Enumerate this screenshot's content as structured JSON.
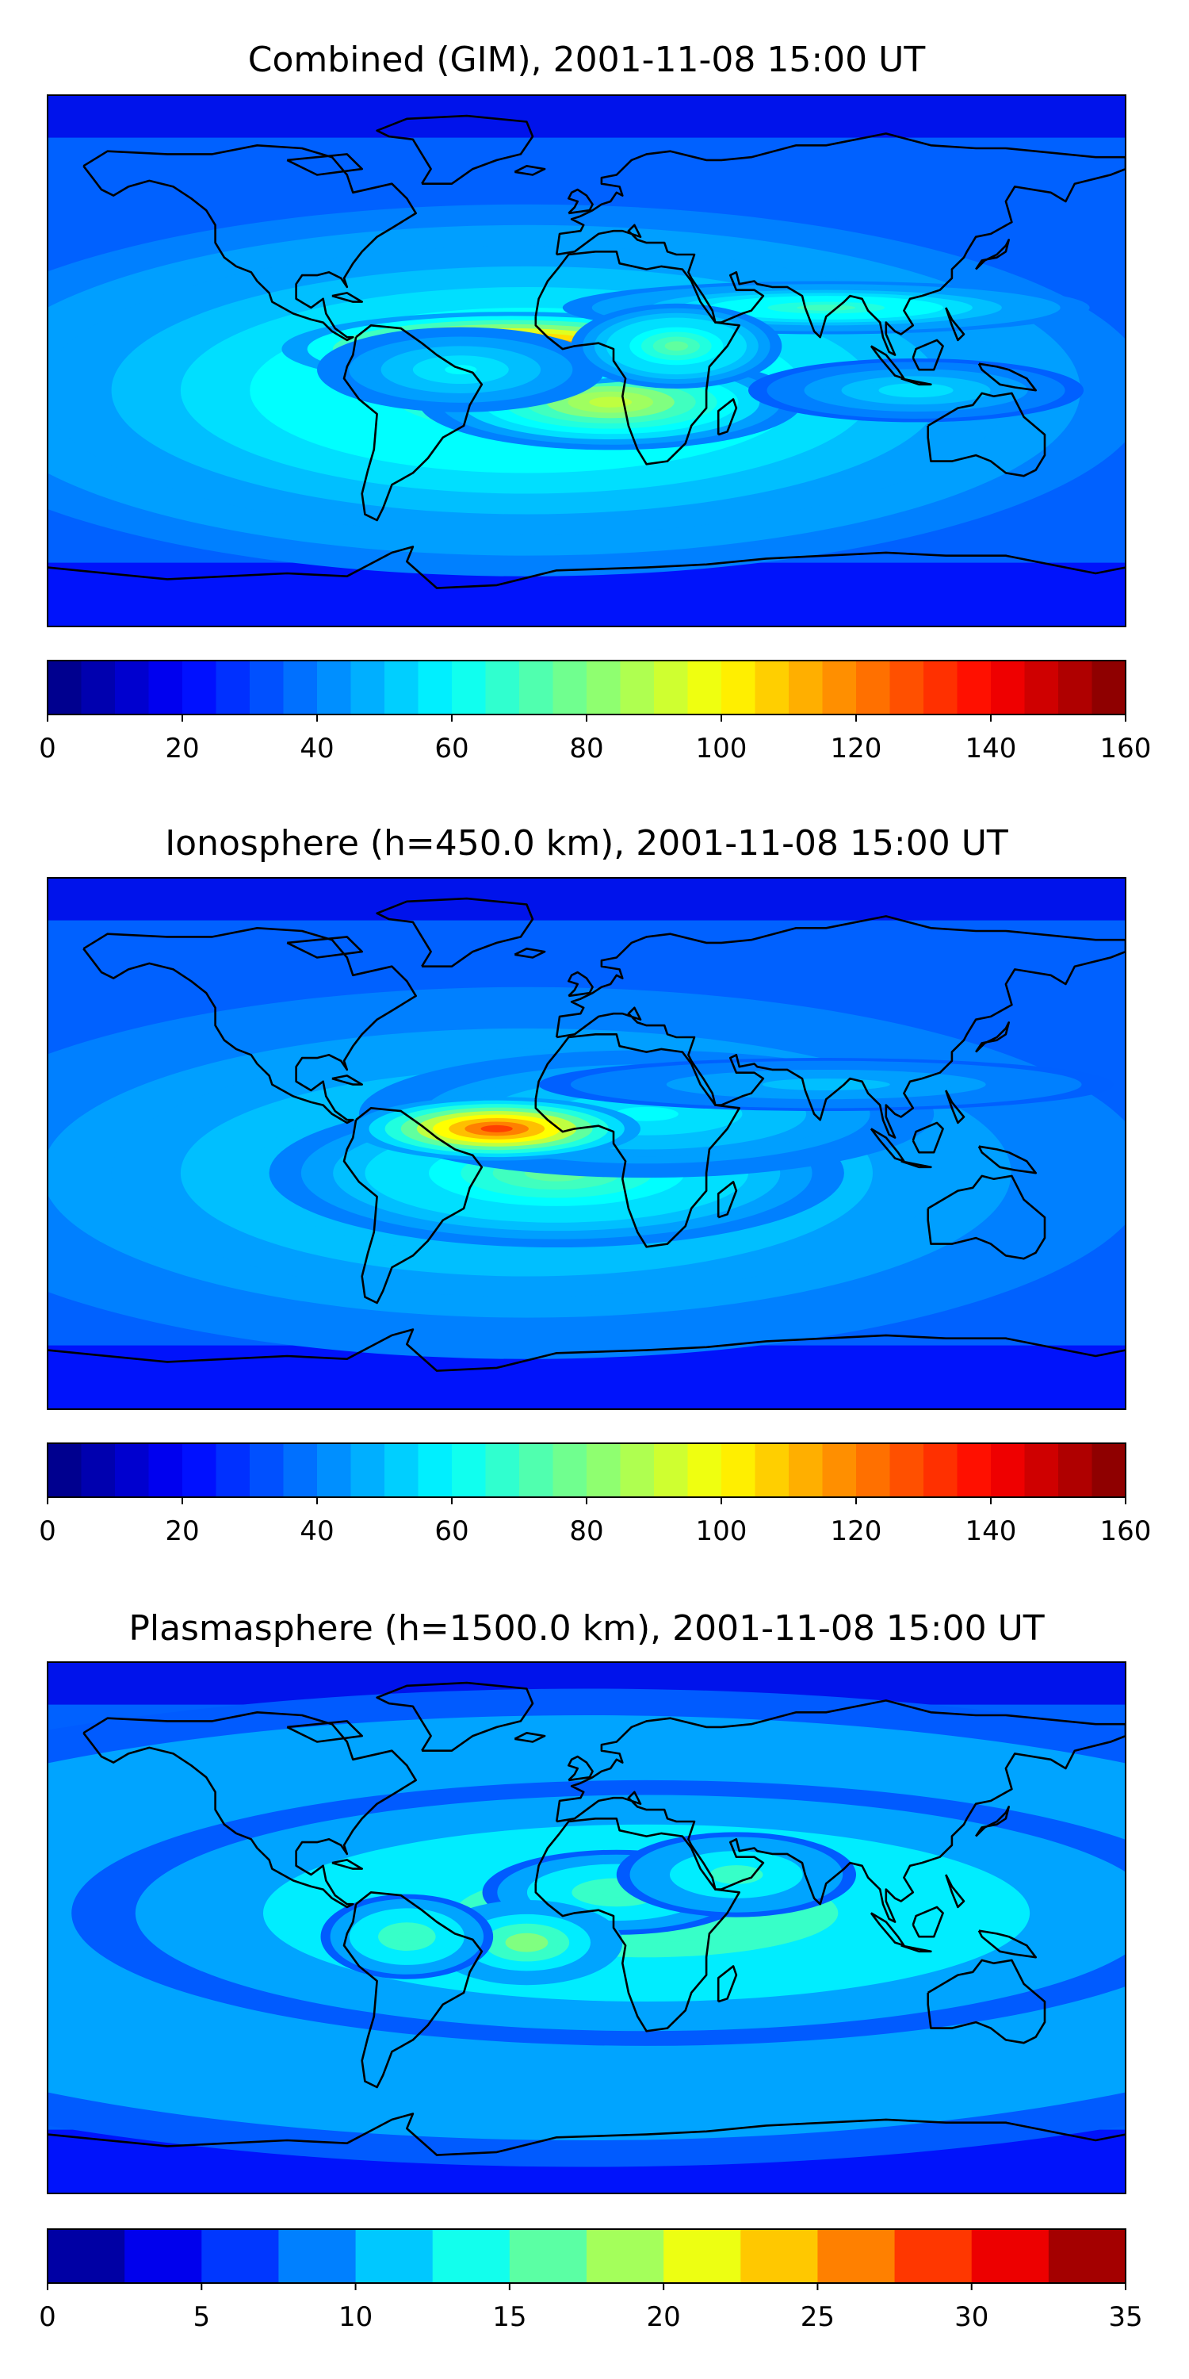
{
  "chart_data": [
    {
      "type": "heatmap",
      "title": "Combined (GIM), 2001-11-08 15:00 UT",
      "colormap": "jet",
      "colorbar": {
        "min": 0,
        "max": 160,
        "levels": 32,
        "ticks": [
          0,
          20,
          40,
          60,
          80,
          100,
          120,
          140,
          160
        ]
      },
      "grid": false,
      "lon_range": [
        -180,
        180
      ],
      "lat_range": [
        -90,
        90
      ],
      "hotspots": [
        {
          "lon": -25,
          "lat": 4,
          "lon_width": 48,
          "lat_width": 7,
          "value": 105
        },
        {
          "lon": -42,
          "lat": -3,
          "lon_width": 30,
          "lat_width": 8,
          "value": 25
        },
        {
          "lon": 8,
          "lat": -14,
          "lon_width": 40,
          "lat_width": 9,
          "value": 55
        },
        {
          "lon": 30,
          "lat": 5,
          "lon_width": 22,
          "lat_width": 8,
          "value": 40
        },
        {
          "lon": 80,
          "lat": 18,
          "lon_width": 55,
          "lat_width": 5,
          "value": 35
        },
        {
          "lon": 110,
          "lat": -10,
          "lon_width": 35,
          "lat_width": 6,
          "value": 20
        },
        {
          "lon": -20,
          "lat": -10,
          "lon_width": 130,
          "lat_width": 35,
          "value": 35
        }
      ]
    },
    {
      "type": "heatmap",
      "title": "Ionosphere  (h=450.0 km), 2001-11-08 15:00 UT",
      "colormap": "jet",
      "colorbar": {
        "min": 0,
        "max": 160,
        "levels": 32,
        "ticks": [
          0,
          20,
          40,
          60,
          80,
          100,
          120,
          140,
          160
        ]
      },
      "grid": false,
      "lon_range": [
        -180,
        180
      ],
      "lat_range": [
        -90,
        90
      ],
      "hotspots": [
        {
          "lon": -30,
          "lat": 5,
          "lon_width": 30,
          "lat_width": 6,
          "value": 95
        },
        {
          "lon": -10,
          "lat": -10,
          "lon_width": 60,
          "lat_width": 14,
          "value": 40
        },
        {
          "lon": 20,
          "lat": 10,
          "lon_width": 60,
          "lat_width": 12,
          "value": 25
        },
        {
          "lon": 80,
          "lat": 20,
          "lon_width": 60,
          "lat_width": 5,
          "value": 15
        },
        {
          "lon": -20,
          "lat": -10,
          "lon_width": 130,
          "lat_width": 35,
          "value": 25
        }
      ]
    },
    {
      "type": "heatmap",
      "title": "Plasmasphere (h=1500.0 km), 2001-11-08 15:00 UT",
      "colormap": "jet",
      "colorbar": {
        "min": 0,
        "max": 35,
        "levels": 14,
        "ticks": [
          0,
          5,
          10,
          15,
          20,
          25,
          30,
          35
        ]
      },
      "grid": false,
      "lon_range": [
        -180,
        180
      ],
      "lat_range": [
        -90,
        90
      ],
      "hotspots": [
        {
          "lon": -20,
          "lat": -5,
          "lon_width": 20,
          "lat_width": 8,
          "value": 10
        },
        {
          "lon": -60,
          "lat": -3,
          "lon_width": 18,
          "lat_width": 8,
          "value": 8
        },
        {
          "lon": 10,
          "lat": 12,
          "lon_width": 28,
          "lat_width": 8,
          "value": 8
        },
        {
          "lon": 50,
          "lat": 18,
          "lon_width": 25,
          "lat_width": 8,
          "value": 7
        },
        {
          "lon": 20,
          "lat": 5,
          "lon_width": 120,
          "lat_width": 25,
          "value": 8
        },
        {
          "lon": 0,
          "lat": 0,
          "lon_width": 200,
          "lat_width": 45,
          "value": 6
        }
      ]
    }
  ]
}
